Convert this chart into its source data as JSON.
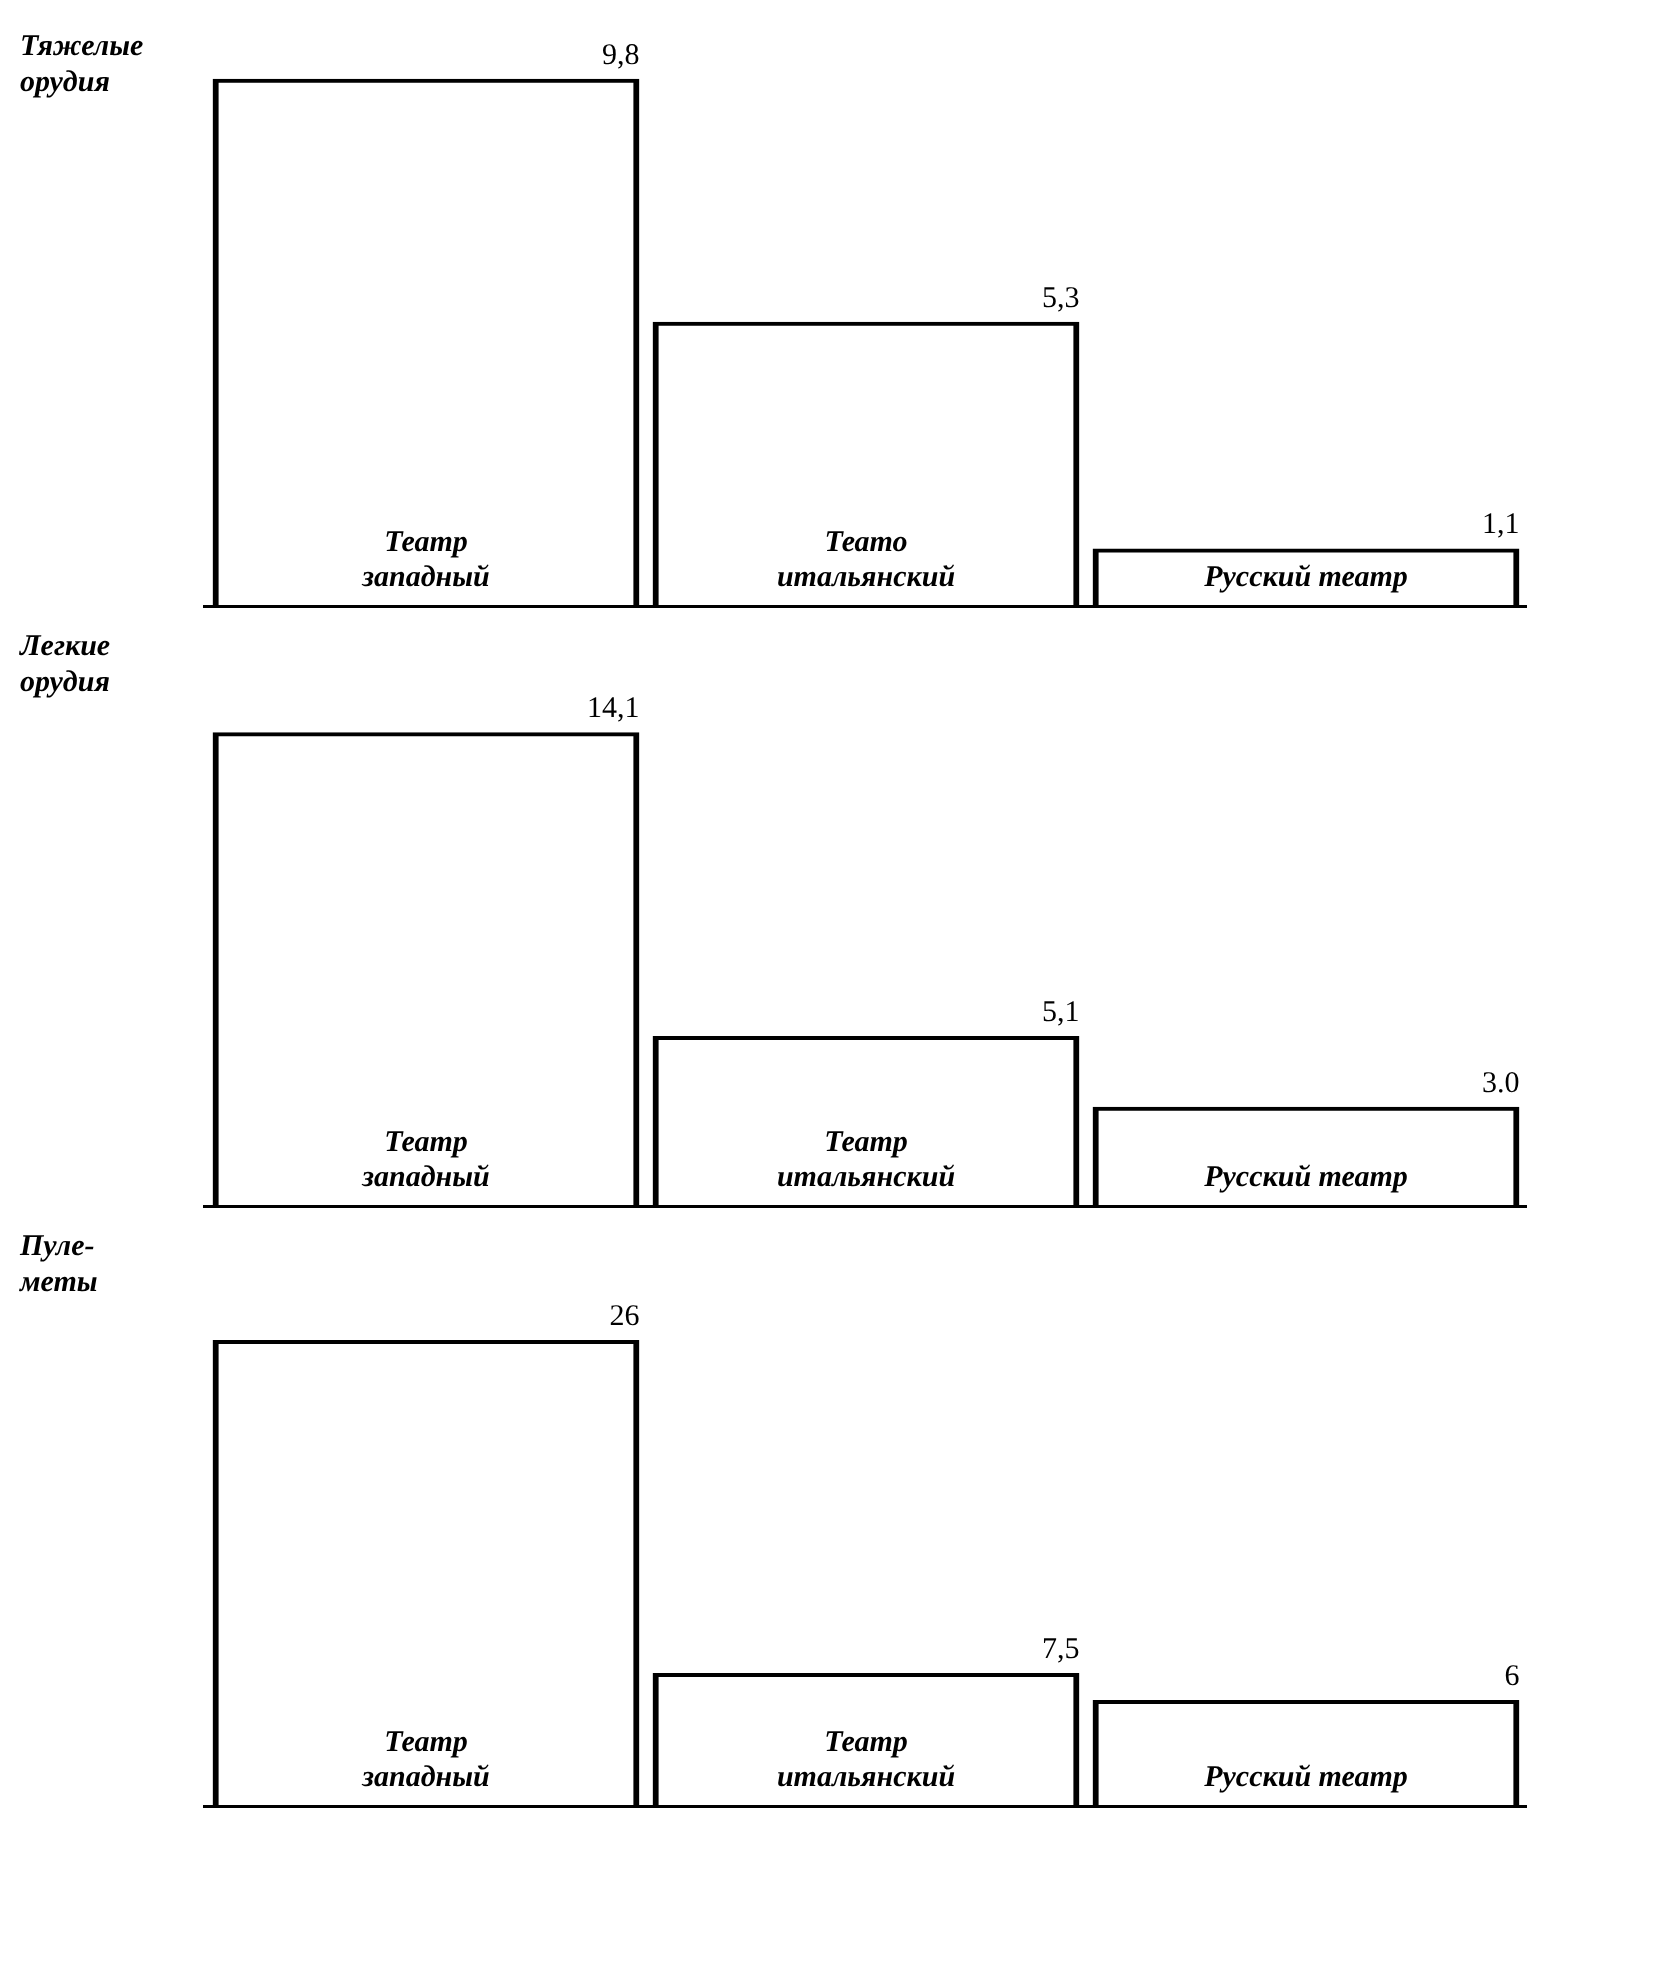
{
  "chart_data": [
    {
      "type": "bar",
      "title": "Тяжелые\nорудия",
      "categories": [
        "Театр\nзападный",
        "Теато\nитальянский",
        "Русский театр"
      ],
      "series": [
        {
          "color": "#000000",
          "values": [
            9.8,
            5.3,
            1.1
          ],
          "value_labels": [
            "9,8",
            "5,3",
            "1,1"
          ]
        }
      ],
      "grid": false,
      "legend": false
    },
    {
      "type": "bar",
      "title": "Легкие\nорудия",
      "categories": [
        "Театр\nзападный",
        "Театр\nитальянский",
        "Русский театр"
      ],
      "series": [
        {
          "color": "#000000",
          "values": [
            14.1,
            5.1,
            3.0
          ],
          "value_labels": [
            "14,1",
            "5,1",
            "3.0"
          ]
        }
      ],
      "grid": false,
      "legend": false
    },
    {
      "type": "bar",
      "title": "Пуле-\nметы",
      "categories": [
        "Театр\nзападный",
        "Театр\nитальянский",
        "Русский театр"
      ],
      "series": [
        {
          "color": "#000000",
          "values": [
            26,
            7.5,
            6
          ],
          "value_labels": [
            "26",
            "7,5",
            "6"
          ]
        }
      ],
      "grid": false,
      "legend": false
    }
  ]
}
